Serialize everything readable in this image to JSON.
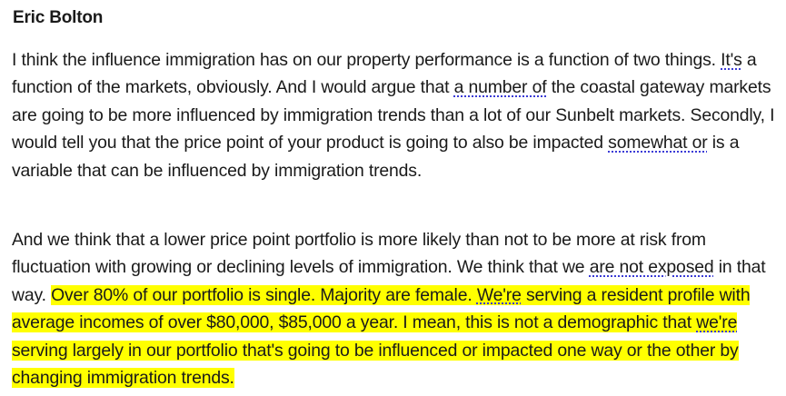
{
  "speaker": "Eric Bolton",
  "paragraph1": [
    {
      "text": "I think the influence immigration has on our property performance is a function of two things. "
    },
    {
      "text": "It's",
      "marked": true
    },
    {
      "text": " a function of the markets, obviously. And I would argue that "
    },
    {
      "text": "a number of",
      "marked": true
    },
    {
      "text": " the coastal gateway markets are going to be more influenced by immigration trends than a lot of our Sunbelt markets. Secondly, I would tell you that the price point of your product is going to also be impacted "
    },
    {
      "text": "somewhat or",
      "marked": true
    },
    {
      "text": " is a variable that can be influenced by immigration trends."
    }
  ],
  "paragraph2": [
    {
      "text": "And we think that a lower price point portfolio is more likely than not to be more at risk from fluctuation with growing or declining levels of immigration. We think that we "
    },
    {
      "text": "are not exposed",
      "marked": true
    },
    {
      "text": " in that way. "
    },
    {
      "text": "Over 80% of our portfolio is single. Majority are female. ",
      "highlight": true
    },
    {
      "text": "We're",
      "highlight": true,
      "marked": true
    },
    {
      "text": " serving a resident profile with average incomes of over $80,000, $85,000 a year. I mean, this is not a demographic that ",
      "highlight": true
    },
    {
      "text": "we're",
      "highlight": true,
      "marked": true
    },
    {
      "text": " serving largely in our portfolio that's going to be influenced or impacted one way or the other by changing immigration trends.",
      "highlight": true
    }
  ],
  "colors": {
    "highlight": "#ffff00",
    "proofing_underline": "#3b3bd6",
    "text": "#1a1a1a"
  }
}
